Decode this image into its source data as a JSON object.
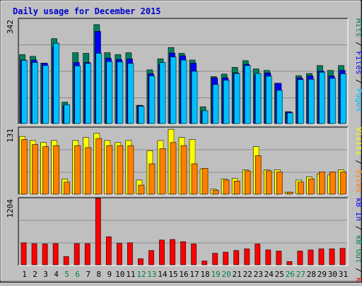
{
  "title": "Daily usage for December 2015",
  "colors": {
    "background": "#c0c0c0",
    "plot_bg": "#bfbfbf",
    "grid": "#8c8c8c",
    "title": "#0000cc",
    "weekend_label": "#008040",
    "weekday_label": "#000000",
    "hits": "#00805c",
    "files": "#0000ff",
    "pages": "#00c0ff",
    "visits": "#ffff00",
    "sites": "#ff8000",
    "kbin": "#0000ff",
    "kbout": "#008040",
    "kbf": "#ff0000"
  },
  "legend": {
    "top": [
      {
        "text": "Hits",
        "color": "#008040"
      },
      {
        "text": "Files",
        "color": "#0000ff"
      },
      {
        "text": "Pages",
        "color": "#00c0ff"
      }
    ],
    "middle": [
      {
        "text": "Visits",
        "color": "#ffff00"
      },
      {
        "text": "Sites",
        "color": "#ff8000"
      }
    ],
    "bottom": [
      {
        "text": "kB In",
        "color": "#0000ff"
      },
      {
        "text": "kB Out",
        "color": "#008040"
      },
      {
        "text": "kB F",
        "color": "#ff0000"
      }
    ]
  },
  "chart_data": [
    {
      "type": "bar",
      "panel": "hits_files_pages",
      "ymax_label": "342",
      "ylim": [
        0,
        342
      ],
      "categories": [
        "1",
        "2",
        "3",
        "4",
        "5",
        "6",
        "7",
        "8",
        "9",
        "10",
        "11",
        "12",
        "13",
        "14",
        "15",
        "16",
        "17",
        "18",
        "19",
        "20",
        "21",
        "22",
        "23",
        "24",
        "25",
        "26",
        "27",
        "28",
        "29",
        "30",
        "31"
      ],
      "weekend_days": [
        "5",
        "6",
        "12",
        "13",
        "19",
        "20",
        "26",
        "27"
      ],
      "series": [
        {
          "name": "Hits",
          "values": [
            226,
            220,
            198,
            278,
            70,
            232,
            230,
            324,
            232,
            226,
            232,
            60,
            176,
            212,
            249,
            230,
            208,
            55,
            154,
            162,
            184,
            206,
            179,
            174,
            132,
            39,
            157,
            164,
            190,
            174,
            190
          ]
        },
        {
          "name": "Files",
          "values": [
            208,
            208,
            198,
            250,
            57,
            200,
            200,
            302,
            214,
            210,
            212,
            59,
            163,
            194,
            231,
            222,
            198,
            42,
            150,
            150,
            166,
            194,
            159,
            166,
            132,
            38,
            150,
            156,
            172,
            156,
            174
          ]
        },
        {
          "name": "Pages",
          "values": [
            207,
            200,
            190,
            263,
            62,
            189,
            197,
            230,
            203,
            202,
            197,
            57,
            156,
            200,
            218,
            208,
            171,
            42,
            128,
            142,
            164,
            190,
            164,
            155,
            109,
            35,
            144,
            145,
            168,
            148,
            163
          ]
        }
      ]
    },
    {
      "type": "bar",
      "panel": "visits_sites",
      "ymax_label": "131",
      "ylim": [
        0,
        131
      ],
      "categories": [
        "1",
        "2",
        "3",
        "4",
        "5",
        "6",
        "7",
        "8",
        "9",
        "10",
        "11",
        "12",
        "13",
        "14",
        "15",
        "16",
        "17",
        "18",
        "19",
        "20",
        "21",
        "22",
        "23",
        "24",
        "25",
        "26",
        "27",
        "28",
        "29",
        "30",
        "31"
      ],
      "series": [
        {
          "name": "Visits",
          "values": [
            114,
            106,
            102,
            106,
            30,
            106,
            112,
            120,
            106,
            102,
            106,
            28,
            86,
            106,
            128,
            112,
            108,
            50,
            10,
            30,
            31,
            48,
            94,
            48,
            48,
            4,
            28,
            34,
            40,
            38,
            48
          ]
        },
        {
          "name": "Sites",
          "values": [
            108,
            98,
            94,
            96,
            24,
            96,
            92,
            110,
            96,
            96,
            96,
            18,
            60,
            90,
            102,
            96,
            60,
            51,
            8,
            28,
            26,
            46,
            76,
            46,
            44,
            4,
            24,
            30,
            44,
            44,
            44
          ]
        }
      ]
    },
    {
      "type": "bar",
      "panel": "kbytes",
      "ymax_label": "1204",
      "ylim": [
        0,
        1204
      ],
      "categories": [
        "1",
        "2",
        "3",
        "4",
        "5",
        "6",
        "7",
        "8",
        "9",
        "10",
        "11",
        "12",
        "13",
        "14",
        "15",
        "16",
        "17",
        "18",
        "19",
        "20",
        "21",
        "22",
        "23",
        "24",
        "25",
        "26",
        "27",
        "28",
        "29",
        "30",
        "31"
      ],
      "series": [
        {
          "name": "kB F",
          "values": [
            400,
            385,
            380,
            385,
            150,
            385,
            385,
            1204,
            510,
            390,
            400,
            110,
            260,
            450,
            460,
            420,
            380,
            70,
            210,
            230,
            260,
            290,
            380,
            270,
            250,
            60,
            250,
            270,
            290,
            290,
            300
          ]
        }
      ]
    }
  ]
}
